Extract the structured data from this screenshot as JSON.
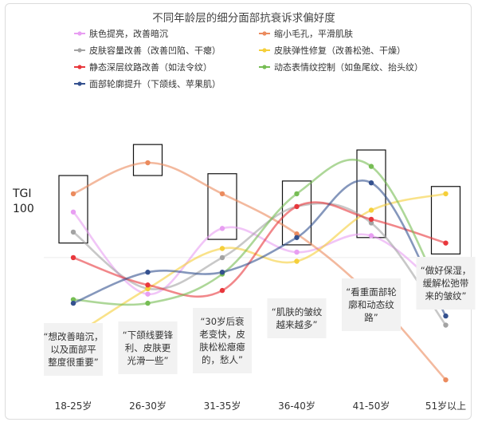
{
  "chart_data": {
    "type": "line",
    "title": "不同年龄层的细分面部抗衰诉求偏好度",
    "ylabel": "TGI",
    "reference_value": 100,
    "reference_label": "100",
    "ylim": [
      30,
      180
    ],
    "categories": [
      "18-25岁",
      "26-30岁",
      "31-35岁",
      "36-40岁",
      "41-50岁",
      "51岁以上"
    ],
    "series": [
      {
        "name": "肤色提亮，改善暗沉",
        "color": "#e89ef2",
        "values": [
          125,
          80,
          116,
          103,
          112,
          80
        ]
      },
      {
        "name": "缩小毛孔，平滑肌肤",
        "color": "#eb8b5e",
        "values": [
          135,
          152,
          135,
          113,
          79,
          33
        ]
      },
      {
        "name": "皮肤容量改善（改善凹陷、干瘪）",
        "color": "#a3a3a3",
        "values": [
          114,
          83,
          100,
          128,
          119,
          63
        ]
      },
      {
        "name": "皮肤弹性修复（改善松弛、干燥）",
        "color": "#f5cf3a",
        "values": [
          57,
          83,
          105,
          98,
          126,
          135
        ]
      },
      {
        "name": "静态深层纹路改善（如法令纹）",
        "color": "#e8373c",
        "values": [
          100,
          85,
          82,
          128,
          121,
          108
        ]
      },
      {
        "name": "动态表情纹控制（如鱼尾纹、抬头纹）",
        "color": "#76bd54",
        "values": [
          77,
          75,
          91,
          135,
          150,
          75
        ]
      },
      {
        "name": "面部轮廓提升（下颌线、苹果肌）",
        "color": "#34518f",
        "values": [
          75,
          92,
          92,
          111,
          141,
          68
        ]
      }
    ],
    "highlight_boxes": [
      {
        "category": "18-25岁",
        "range": [
          108,
          145
        ]
      },
      {
        "category": "26-30岁",
        "range": [
          145,
          162
        ]
      },
      {
        "category": "31-35岁",
        "range": [
          110,
          146
        ]
      },
      {
        "category": "36-40岁",
        "range": [
          107,
          142
        ]
      },
      {
        "category": "41-50岁",
        "range": [
          111,
          159
        ]
      },
      {
        "category": "51岁以上",
        "range": [
          102,
          139
        ]
      }
    ],
    "annotations": [
      {
        "category": "18-25岁",
        "lines": [
          "“想改善暗沉，",
          "以及面部平",
          "整度很重要”"
        ]
      },
      {
        "category": "26-30岁",
        "lines": [
          "“下颌线要锋",
          "利、皮肤更",
          "光滑一些”"
        ]
      },
      {
        "category": "31-35岁",
        "lines": [
          "“30岁后衰",
          "老变快，皮",
          "肤松松瘪瘪",
          "的，愁人”"
        ]
      },
      {
        "category": "36-40岁",
        "lines": [
          "“肌肤的皱纹",
          "越来越多”"
        ]
      },
      {
        "category": "41-50岁",
        "lines": [
          "“看重面部轮",
          "廓和动态纹",
          "路”"
        ]
      },
      {
        "category": "51岁以上",
        "lines": [
          "“做好保湿，",
          "缓解松弛带",
          "来的皱纹”"
        ]
      }
    ],
    "grid": false,
    "legend_position": "top"
  }
}
